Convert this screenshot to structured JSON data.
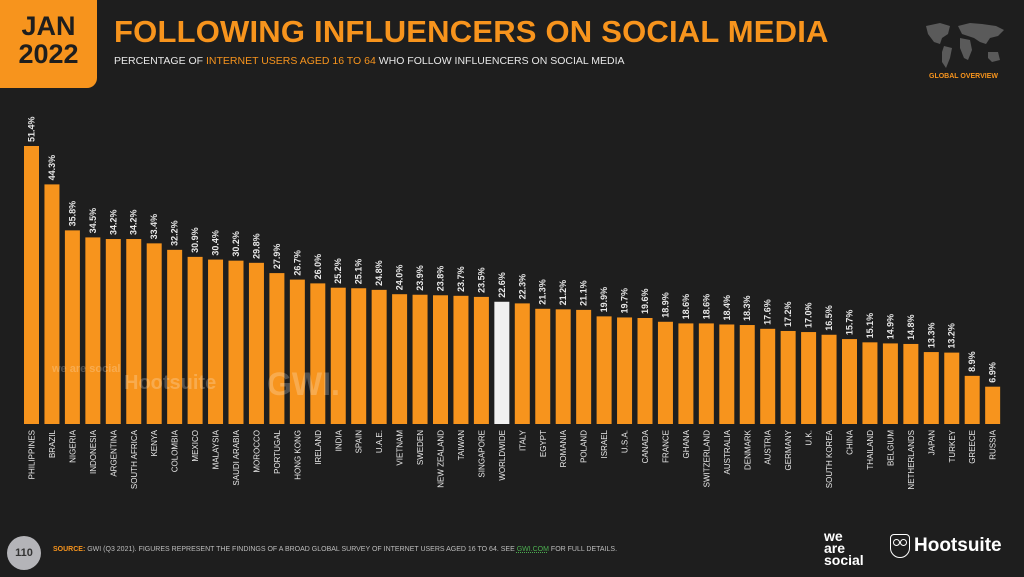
{
  "header": {
    "month": "JAN",
    "year": "2022",
    "title": "FOLLOWING INFLUENCERS ON SOCIAL MEDIA",
    "subtitle_pre": "PERCENTAGE OF ",
    "subtitle_highlight": "INTERNET USERS AGED 16 TO 64",
    "subtitle_post": " WHO FOLLOW INFLUENCERS ON SOCIAL MEDIA",
    "section": "GLOBAL OVERVIEW"
  },
  "watermark": {
    "we_are_social": "we are social",
    "hootsuite": "Hootsuite",
    "gwi": "GWI."
  },
  "footer": {
    "page_number": "110",
    "source_label": "SOURCE:",
    "source_text": " GWI (Q3 2021). FIGURES REPRESENT THE FINDINGS OF A BROAD GLOBAL SURVEY OF INTERNET USERS AGED 16 TO 64. SEE ",
    "source_link": "GWI.COM",
    "source_tail": " FOR FULL DETAILS.",
    "logo_we": "we",
    "logo_are": "are",
    "logo_social": "social",
    "logo_hootsuite": "Hootsuite"
  },
  "colors": {
    "bar": "#f7941d",
    "highlight": "#f0f0f0",
    "background": "#1e1e1e",
    "label": "#e8e8e8"
  },
  "chart_data": {
    "type": "bar",
    "title": "FOLLOWING INFLUENCERS ON SOCIAL MEDIA",
    "xlabel": "",
    "ylabel": "",
    "ylim": [
      0,
      51.4
    ],
    "grid": false,
    "highlight_category": "WORLDWIDE",
    "categories": [
      "PHILIPPINES",
      "BRAZIL",
      "NIGERIA",
      "INDONESIA",
      "ARGENTINA",
      "SOUTH AFRICA",
      "KENYA",
      "COLOMBIA",
      "MEXICO",
      "MALAYSIA",
      "SAUDI ARABIA",
      "MOROCCO",
      "PORTUGAL",
      "HONG KONG",
      "IRELAND",
      "INDIA",
      "SPAIN",
      "U.A.E.",
      "VIETNAM",
      "SWEDEN",
      "NEW ZEALAND",
      "TAIWAN",
      "SINGAPORE",
      "WORLDWIDE",
      "ITALY",
      "EGYPT",
      "ROMANIA",
      "POLAND",
      "ISRAEL",
      "U.S.A.",
      "CANADA",
      "FRANCE",
      "GHANA",
      "SWITZERLAND",
      "AUSTRALIA",
      "DENMARK",
      "AUSTRIA",
      "GERMANY",
      "U.K.",
      "SOUTH KOREA",
      "CHINA",
      "THAILAND",
      "BELGIUM",
      "NETHERLANDS",
      "JAPAN",
      "TURKEY",
      "GREECE",
      "RUSSIA"
    ],
    "values": [
      51.4,
      44.3,
      35.8,
      34.5,
      34.2,
      34.2,
      33.4,
      32.2,
      30.9,
      30.4,
      30.2,
      29.8,
      27.9,
      26.7,
      26.0,
      25.2,
      25.1,
      24.8,
      24.0,
      23.9,
      23.8,
      23.7,
      23.5,
      22.6,
      22.3,
      21.3,
      21.2,
      21.1,
      19.9,
      19.7,
      19.6,
      18.9,
      18.6,
      18.6,
      18.4,
      18.3,
      17.6,
      17.2,
      17.0,
      16.5,
      15.7,
      15.1,
      14.9,
      14.8,
      13.3,
      13.2,
      8.9,
      6.9
    ],
    "value_labels": [
      "51.4%",
      "44.3%",
      "35.8%",
      "34.5%",
      "34.2%",
      "34.2%",
      "33.4%",
      "32.2%",
      "30.9%",
      "30.4%",
      "30.2%",
      "29.8%",
      "27.9%",
      "26.7%",
      "26.0%",
      "25.2%",
      "25.1%",
      "24.8%",
      "24.0%",
      "23.9%",
      "23.8%",
      "23.7%",
      "23.5%",
      "22.6%",
      "22.3%",
      "21.3%",
      "21.2%",
      "21.1%",
      "19.9%",
      "19.7%",
      "19.6%",
      "18.9%",
      "18.6%",
      "18.6%",
      "18.4%",
      "18.3%",
      "17.6%",
      "17.2%",
      "17.0%",
      "16.5%",
      "15.7%",
      "15.1%",
      "14.9%",
      "14.8%",
      "13.3%",
      "13.2%",
      "8.9%",
      "6.9%"
    ]
  }
}
